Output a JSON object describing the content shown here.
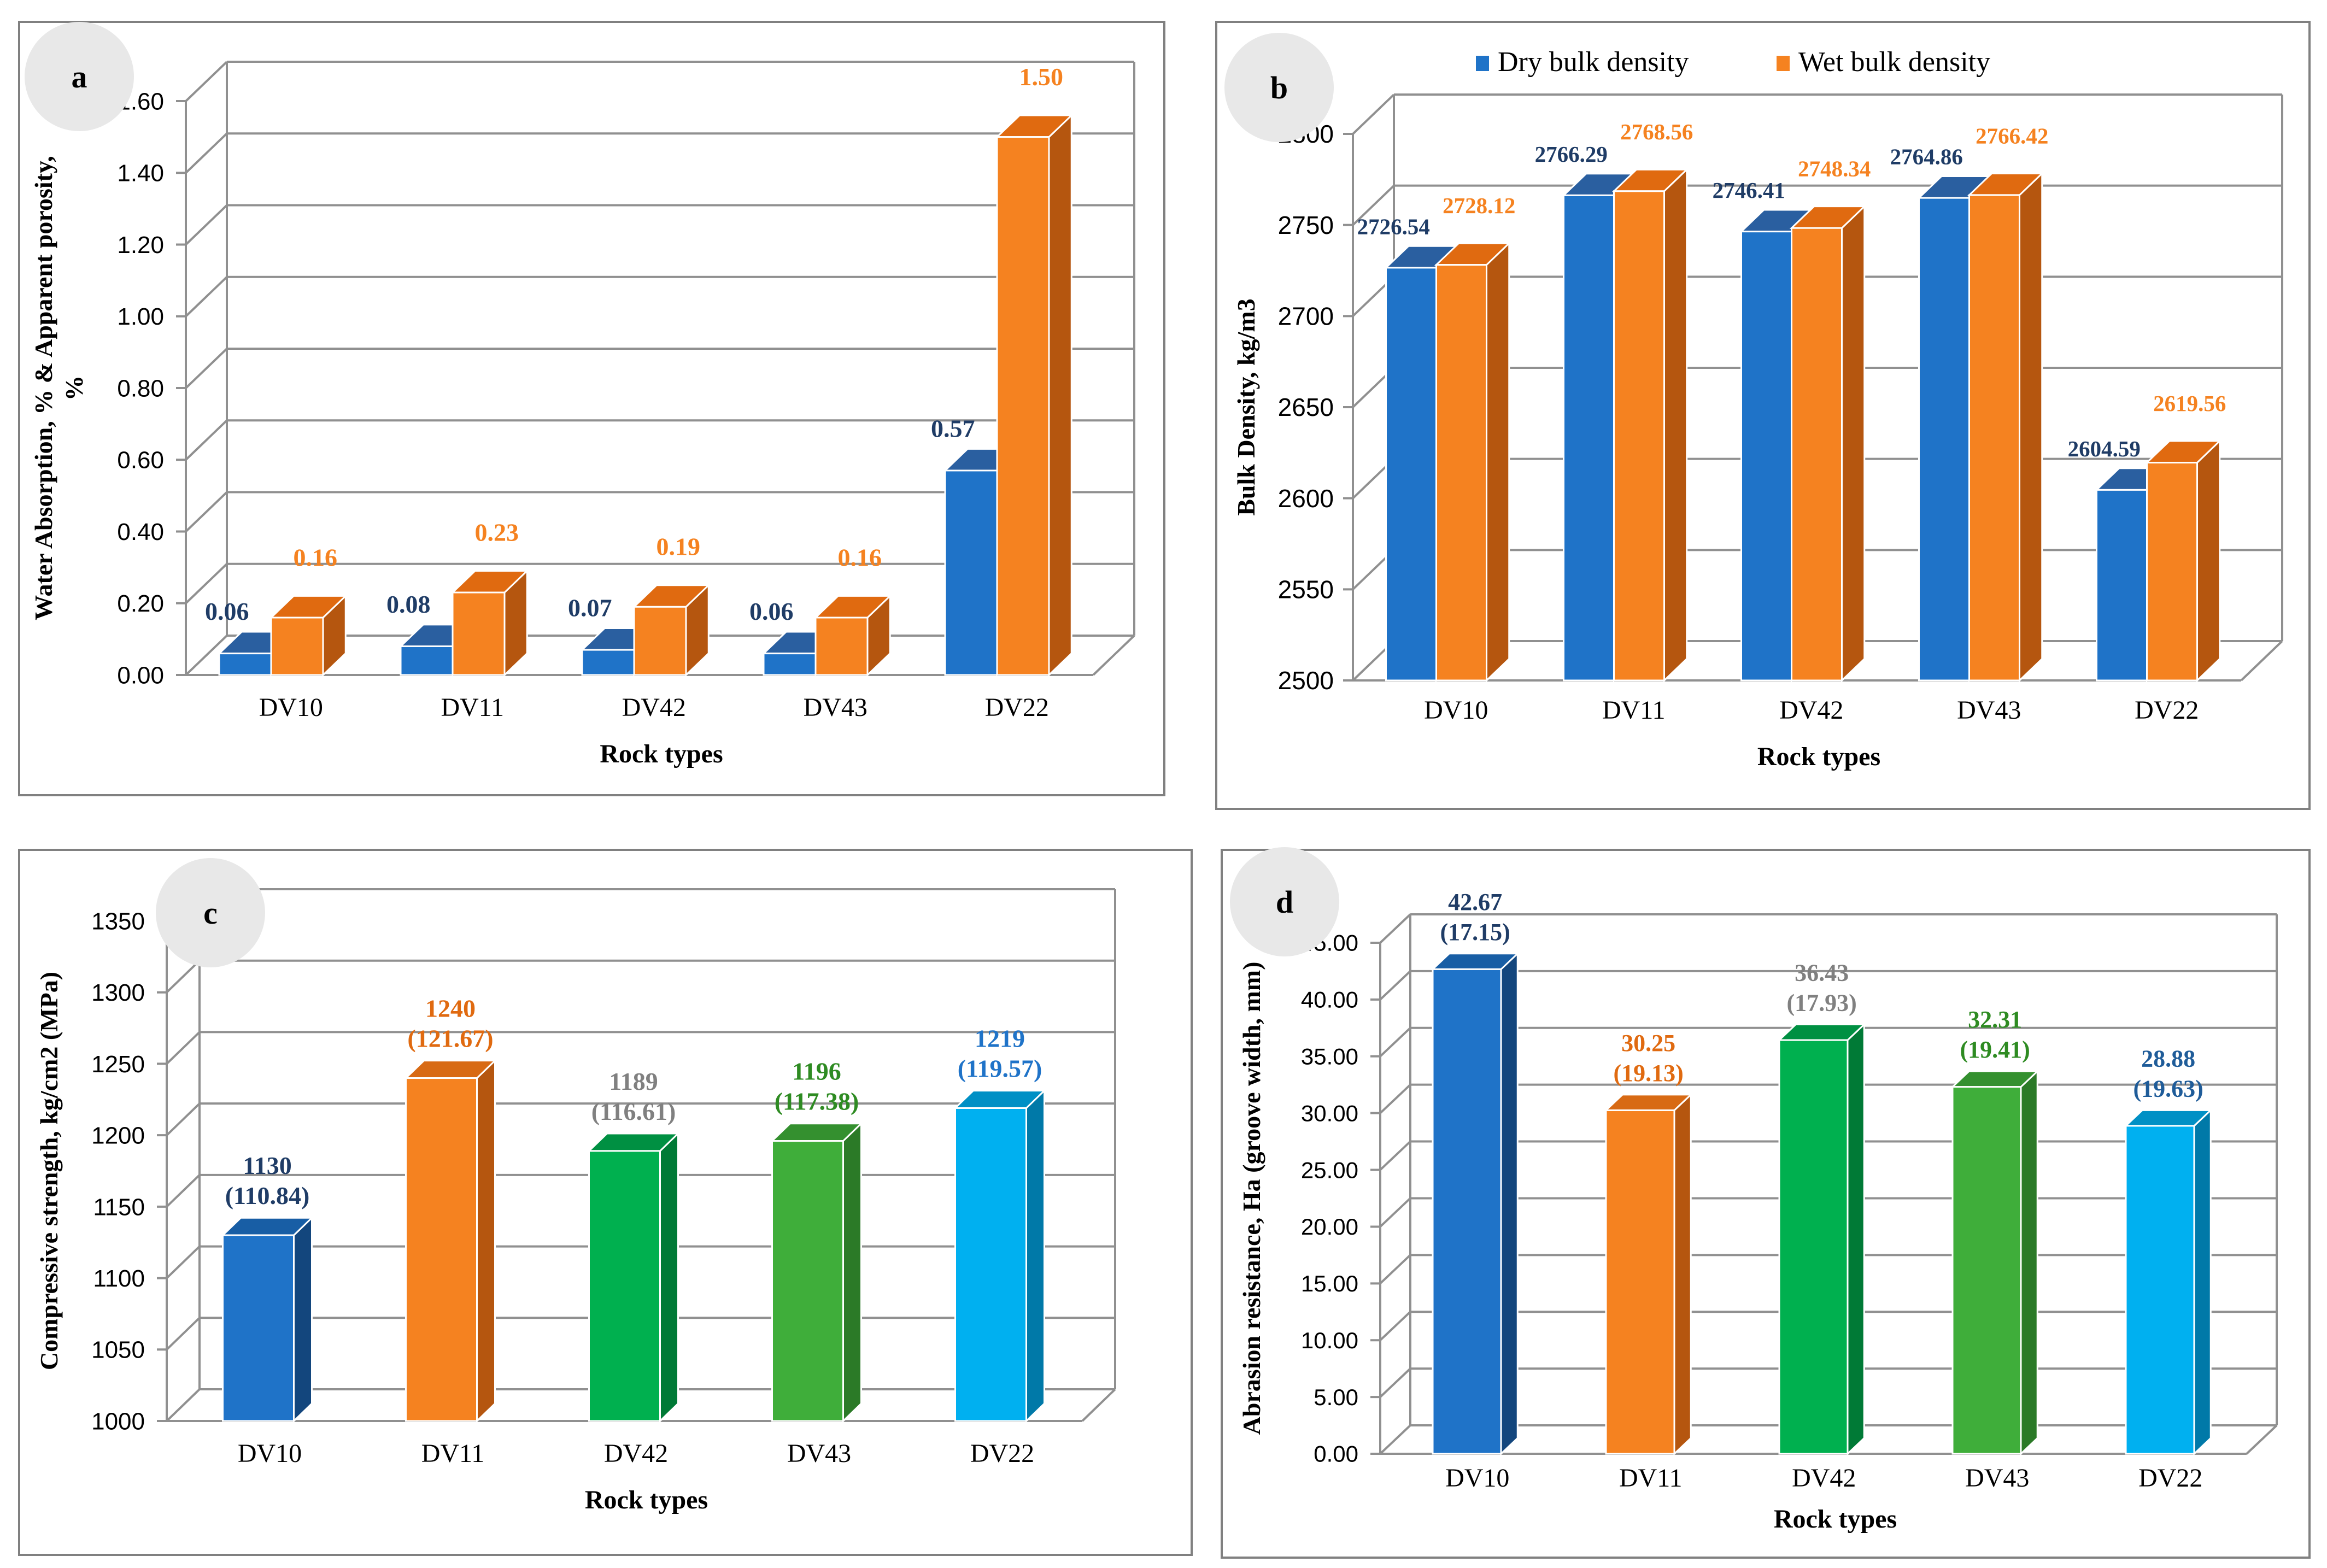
{
  "chart_data": [
    {
      "id": "a",
      "panel_label": "a",
      "type": "bar",
      "categories": [
        "DV10",
        "DV11",
        "DV42",
        "DV43",
        "DV22"
      ],
      "series": [
        {
          "values": [
            0.06,
            0.08,
            0.07,
            0.06,
            0.57
          ],
          "labels": [
            "0.06",
            "0.08",
            "0.07",
            "0.06",
            "0.57"
          ]
        },
        {
          "values": [
            0.16,
            0.23,
            0.19,
            0.16,
            1.5
          ],
          "labels": [
            "0.16",
            "0.23",
            "0.19",
            "0.16",
            "1.50"
          ]
        }
      ],
      "xlabel": "Rock types",
      "ylabel_lines": [
        "Water Absorption, % & Apparent porosity,",
        "%"
      ],
      "ylim": [
        0,
        1.6
      ],
      "yticks": [
        "0.00",
        "0.20",
        "0.40",
        "0.60",
        "0.80",
        "1.00",
        "1.20",
        "1.40",
        "1.60"
      ],
      "grid": true,
      "colors": {
        "series_front": [
          "#1F73C8",
          "#F58220"
        ],
        "series_side": [
          "#155090",
          "#B5560F"
        ],
        "series_top": [
          "#2A5FA0",
          "#E06A10"
        ],
        "label_colors": [
          "#1F3C66",
          "#F58220"
        ]
      }
    },
    {
      "id": "b",
      "panel_label": "b",
      "type": "bar",
      "categories": [
        "DV10",
        "DV11",
        "DV42",
        "DV43",
        "DV22"
      ],
      "series": [
        {
          "name": "Dry bulk density",
          "values": [
            2726.54,
            2766.29,
            2746.41,
            2764.86,
            2604.59
          ],
          "labels": [
            "2726.54",
            "2766.29",
            "2746.41",
            "2764.86",
            "2604.59"
          ]
        },
        {
          "name": "Wet bulk density",
          "values": [
            2728.12,
            2768.56,
            2748.34,
            2766.42,
            2619.56
          ],
          "labels": [
            "2728.12",
            "2768.56",
            "2748.34",
            "2766.42",
            "2619.56"
          ]
        }
      ],
      "xlabel": "Rock types",
      "ylabel_lines": [
        "Bulk Density, kg/m3"
      ],
      "ylim": [
        2500,
        2800
      ],
      "yticks": [
        "2500",
        "2550",
        "2600",
        "2650",
        "2700",
        "2750",
        "2800"
      ],
      "grid": true,
      "legend": "top",
      "colors": {
        "series_front": [
          "#1F73C8",
          "#F58220"
        ],
        "series_side": [
          "#155090",
          "#B5560F"
        ],
        "series_top": [
          "#2A5FA0",
          "#E06A10"
        ],
        "label_colors": [
          "#1F3C66",
          "#F58220"
        ]
      }
    },
    {
      "id": "c",
      "panel_label": "c",
      "type": "bar",
      "categories": [
        "DV10",
        "DV11",
        "DV42",
        "DV43",
        "DV22"
      ],
      "values": [
        1130,
        1240,
        1189,
        1196,
        1219
      ],
      "label_lines": [
        [
          "1130",
          "(110.84)"
        ],
        [
          "1240",
          "(121.67)"
        ],
        [
          "1189",
          "(116.61)"
        ],
        [
          "1196",
          "(117.38)"
        ],
        [
          "1219",
          "(119.57)"
        ]
      ],
      "xlabel": "Rock types",
      "ylabel_lines": [
        "Compressive strength, kg/cm2 (MPa)"
      ],
      "ylim": [
        1000,
        1350
      ],
      "yticks": [
        "1000",
        "1050",
        "1100",
        "1150",
        "1200",
        "1250",
        "1300",
        "1350"
      ],
      "grid": true,
      "colors": {
        "bar_front": [
          "#1F73C8",
          "#F58220",
          "#00B04F",
          "#3FAE3A",
          "#00B0F0"
        ],
        "bar_side": [
          "#13467D",
          "#B5560F",
          "#007A36",
          "#2B7A27",
          "#0079A8"
        ],
        "bar_top": [
          "#185EA5",
          "#D86A14",
          "#009042",
          "#34902F",
          "#0090C5"
        ],
        "label_colors": [
          "#1F3C66",
          "#E06A10",
          "#808080",
          "#2E8B22",
          "#1F73C8"
        ]
      }
    },
    {
      "id": "d",
      "panel_label": "d",
      "type": "bar",
      "categories": [
        "DV10",
        "DV11",
        "DV42",
        "DV43",
        "DV22"
      ],
      "values": [
        42.67,
        30.25,
        36.43,
        32.31,
        28.88
      ],
      "label_lines": [
        [
          "42.67",
          "(17.15)"
        ],
        [
          "30.25",
          "(19.13)"
        ],
        [
          "36.43",
          "(17.93)"
        ],
        [
          "32.31",
          "(19.41)"
        ],
        [
          "28.88",
          "(19.63)"
        ]
      ],
      "xlabel": "Rock types",
      "ylabel_lines": [
        "Abrasion resistance, Ha (groove width, mm)"
      ],
      "ylim": [
        0,
        45
      ],
      "yticks": [
        "0.00",
        "5.00",
        "10.00",
        "15.00",
        "20.00",
        "25.00",
        "30.00",
        "35.00",
        "40.00",
        "45.00"
      ],
      "grid": true,
      "colors": {
        "bar_front": [
          "#1F73C8",
          "#F58220",
          "#00B04F",
          "#3FAE3A",
          "#00B0F0"
        ],
        "bar_side": [
          "#13467D",
          "#B5560F",
          "#007A36",
          "#2B7A27",
          "#0079A8"
        ],
        "bar_top": [
          "#185EA5",
          "#D86A14",
          "#009042",
          "#34902F",
          "#0090C5"
        ],
        "label_colors": [
          "#1F3C66",
          "#E06A10",
          "#808080",
          "#2E8B22",
          "#1F5C99"
        ]
      }
    }
  ]
}
